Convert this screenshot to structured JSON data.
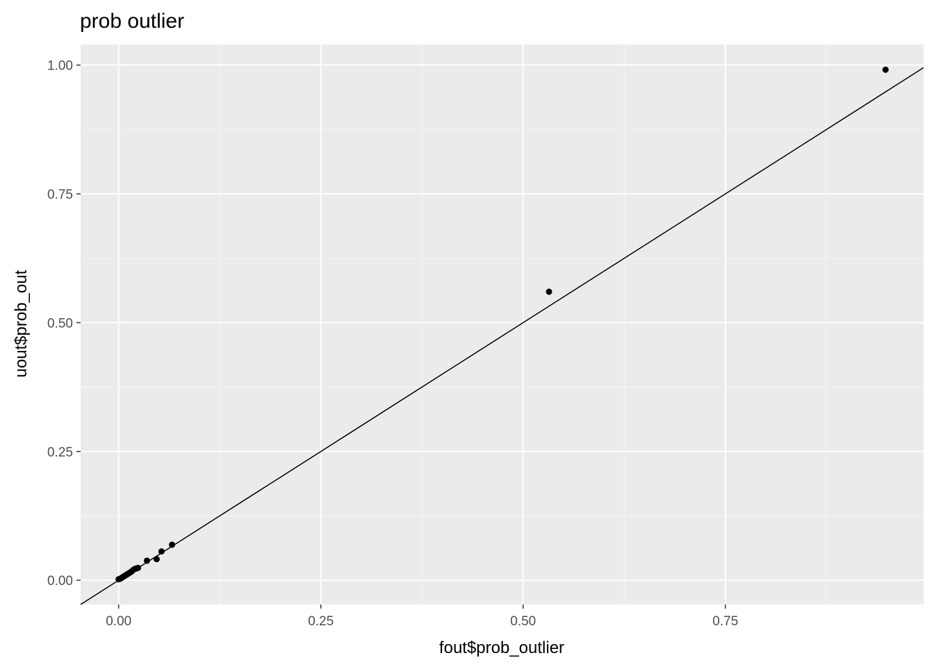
{
  "chart_data": {
    "type": "scatter",
    "title": "prob outlier",
    "xlabel": "fout$prob_outlier",
    "ylabel": "uout$prob_out",
    "xlim": [
      -0.047,
      0.995
    ],
    "ylim": [
      -0.047,
      1.04
    ],
    "x_ticks": [
      {
        "value": 0,
        "label": "0.00"
      },
      {
        "value": 0.25,
        "label": "0.25"
      },
      {
        "value": 0.5,
        "label": "0.50"
      },
      {
        "value": 0.75,
        "label": "0.75"
      }
    ],
    "y_ticks": [
      {
        "value": 0,
        "label": "0.00"
      },
      {
        "value": 0.25,
        "label": "0.25"
      },
      {
        "value": 0.5,
        "label": "0.50"
      },
      {
        "value": 0.75,
        "label": "0.75"
      },
      {
        "value": 1.0,
        "label": "1.00"
      }
    ],
    "x_minor": [
      0.125,
      0.375,
      0.625,
      0.875
    ],
    "y_minor": [
      0.125,
      0.375,
      0.625,
      0.875
    ],
    "grid": true,
    "reference_line": {
      "intercept": 0,
      "slope": 1
    },
    "points": [
      {
        "x": 0.0,
        "y": 0.002
      },
      {
        "x": 0.002,
        "y": 0.003
      },
      {
        "x": 0.004,
        "y": 0.005
      },
      {
        "x": 0.006,
        "y": 0.007
      },
      {
        "x": 0.008,
        "y": 0.009
      },
      {
        "x": 0.01,
        "y": 0.011
      },
      {
        "x": 0.012,
        "y": 0.013
      },
      {
        "x": 0.014,
        "y": 0.015
      },
      {
        "x": 0.016,
        "y": 0.017
      },
      {
        "x": 0.018,
        "y": 0.02
      },
      {
        "x": 0.02,
        "y": 0.022
      },
      {
        "x": 0.022,
        "y": 0.023
      },
      {
        "x": 0.024,
        "y": 0.024
      },
      {
        "x": 0.035,
        "y": 0.038
      },
      {
        "x": 0.047,
        "y": 0.041
      },
      {
        "x": 0.053,
        "y": 0.056
      },
      {
        "x": 0.066,
        "y": 0.069
      },
      {
        "x": 0.532,
        "y": 0.56
      },
      {
        "x": 0.948,
        "y": 0.991
      }
    ],
    "colors": {
      "panel_background": "#ebebeb",
      "grid_major": "#ffffff",
      "grid_minor": "#f5f5f5",
      "points": "#000000",
      "line": "#000000"
    }
  }
}
